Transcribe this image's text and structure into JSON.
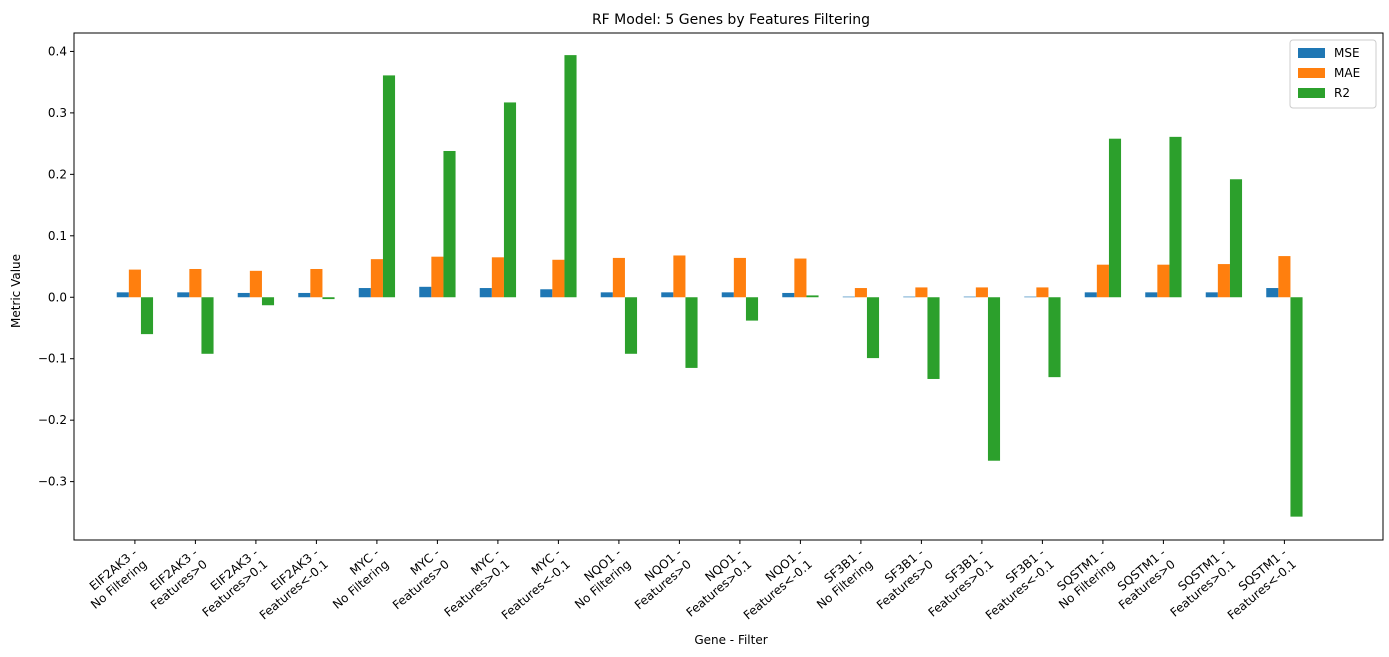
{
  "chart_data": {
    "type": "bar",
    "title": "RF Model: 5 Genes by Features Filtering",
    "xlabel": "Gene - Filter",
    "ylabel": "Metric Value",
    "ylim": [
      -0.395,
      0.43
    ],
    "yticks": [
      -0.3,
      -0.2,
      -0.1,
      0.0,
      0.1,
      0.2,
      0.3,
      0.4
    ],
    "ytick_labels": [
      "−0.3",
      "−0.2",
      "−0.1",
      "0.0",
      "0.1",
      "0.2",
      "0.3",
      "0.4"
    ],
    "legend_position": "top-right",
    "grid": false,
    "categories": [
      [
        "EIF2AK3 -",
        "No Filtering"
      ],
      [
        "EIF2AK3 -",
        "Features>0"
      ],
      [
        "EIF2AK3 -",
        "Features>0.1"
      ],
      [
        "EIF2AK3 -",
        "Features<-0.1"
      ],
      [
        "MYC -",
        "No Filtering"
      ],
      [
        "MYC -",
        "Features>0"
      ],
      [
        "MYC -",
        "Features>0.1"
      ],
      [
        "MYC -",
        "Features<-0.1"
      ],
      [
        "NQO1 -",
        "No Filtering"
      ],
      [
        "NQO1 -",
        "Features>0"
      ],
      [
        "NQO1 -",
        "Features>0.1"
      ],
      [
        "NQO1 -",
        "Features<-0.1"
      ],
      [
        "SF3B1 -",
        "No Filtering"
      ],
      [
        "SF3B1 -",
        "Features>0"
      ],
      [
        "SF3B1 -",
        "Features>0.1"
      ],
      [
        "SF3B1 -",
        "Features<-0.1"
      ],
      [
        "SQSTM1 -",
        "No Filtering"
      ],
      [
        "SQSTM1 -",
        "Features>0"
      ],
      [
        "SQSTM1 -",
        "Features>0.1"
      ],
      [
        "SQSTM1 -",
        "Features<-0.1"
      ]
    ],
    "series": [
      {
        "name": "MSE",
        "color": "#1f77b4",
        "values": [
          0.008,
          0.008,
          0.007,
          0.007,
          0.015,
          0.017,
          0.015,
          0.013,
          0.008,
          0.008,
          0.008,
          0.007,
          0.001,
          0.001,
          0.001,
          0.001,
          0.008,
          0.008,
          0.008,
          0.015
        ]
      },
      {
        "name": "MAE",
        "color": "#ff7f0e",
        "values": [
          0.045,
          0.046,
          0.043,
          0.046,
          0.062,
          0.066,
          0.065,
          0.061,
          0.064,
          0.068,
          0.064,
          0.063,
          0.015,
          0.016,
          0.016,
          0.016,
          0.053,
          0.053,
          0.054,
          0.067
        ]
      },
      {
        "name": "R2",
        "color": "#2ca02c",
        "values": [
          -0.06,
          -0.092,
          -0.013,
          -0.003,
          0.361,
          0.238,
          0.317,
          0.394,
          -0.092,
          -0.115,
          -0.038,
          0.003,
          -0.099,
          -0.133,
          -0.266,
          -0.13,
          0.258,
          0.261,
          0.192,
          -0.357
        ]
      }
    ]
  }
}
